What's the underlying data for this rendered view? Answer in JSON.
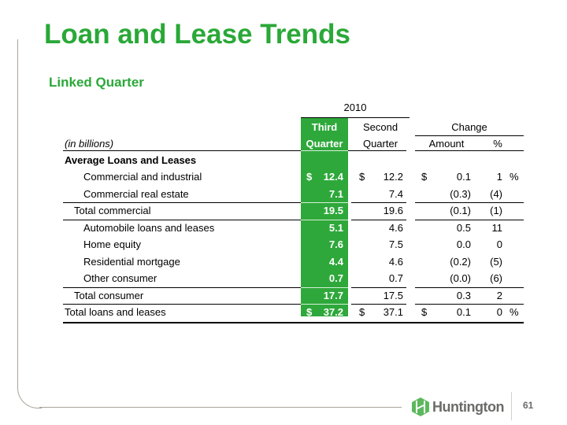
{
  "slide": {
    "title": "Loan and Lease Trends",
    "subtitle": "Linked Quarter",
    "page_number": "61",
    "logo_text": "Huntington"
  },
  "table": {
    "year_header": "2010",
    "units_label": "(in billions)",
    "columns": {
      "third_quarter_line1": "Third",
      "third_quarter_line2": "Quarter",
      "second_quarter_line1": "Second",
      "second_quarter_line2": "Quarter",
      "change": "Change",
      "amount": "Amount",
      "percent": "%"
    },
    "section_header": "Average Loans and Leases",
    "rows": [
      {
        "label": "Commercial and industrial",
        "q3_sign": "$",
        "q3": "12.4",
        "q2_sign": "$",
        "q2": "12.2",
        "amt_sign": "$",
        "amount": "0.1",
        "pct": "1",
        "pct_sign": "%"
      },
      {
        "label": "Commercial real estate",
        "q3_sign": "",
        "q3": "7.1",
        "q2_sign": "",
        "q2": "7.4",
        "amt_sign": "",
        "amount": "(0.3)",
        "pct": "(4)",
        "pct_sign": ""
      },
      {
        "label": "Total commercial",
        "q3_sign": "",
        "q3": "19.5",
        "q2_sign": "",
        "q2": "19.6",
        "amt_sign": "",
        "amount": "(0.1)",
        "pct": "(1)",
        "pct_sign": ""
      },
      {
        "label": "Automobile loans and leases",
        "q3_sign": "",
        "q3": "5.1",
        "q2_sign": "",
        "q2": "4.6",
        "amt_sign": "",
        "amount": "0.5",
        "pct": "11",
        "pct_sign": ""
      },
      {
        "label": "Home equity",
        "q3_sign": "",
        "q3": "7.6",
        "q2_sign": "",
        "q2": "7.5",
        "amt_sign": "",
        "amount": "0.0",
        "pct": "0",
        "pct_sign": ""
      },
      {
        "label": "Residential mortgage",
        "q3_sign": "",
        "q3": "4.4",
        "q2_sign": "",
        "q2": "4.6",
        "amt_sign": "",
        "amount": "(0.2)",
        "pct": "(5)",
        "pct_sign": ""
      },
      {
        "label": "Other consumer",
        "q3_sign": "",
        "q3": "0.7",
        "q2_sign": "",
        "q2": "0.7",
        "amt_sign": "",
        "amount": "(0.0)",
        "pct": "(6)",
        "pct_sign": ""
      },
      {
        "label": "Total consumer",
        "q3_sign": "",
        "q3": "17.7",
        "q2_sign": "",
        "q2": "17.5",
        "amt_sign": "",
        "amount": "0.3",
        "pct": "2",
        "pct_sign": ""
      },
      {
        "label": "Total loans and leases",
        "q3_sign": "$",
        "q3": "37.2",
        "q2_sign": "$",
        "q2": "37.1",
        "amt_sign": "$",
        "amount": "0.1",
        "pct": "0",
        "pct_sign": "%"
      }
    ]
  },
  "colors": {
    "brand_green": "#2aa838",
    "highlight_column": "#2ea83a",
    "logo_gray": "#6b6b68",
    "frame": "#a8a49c"
  }
}
